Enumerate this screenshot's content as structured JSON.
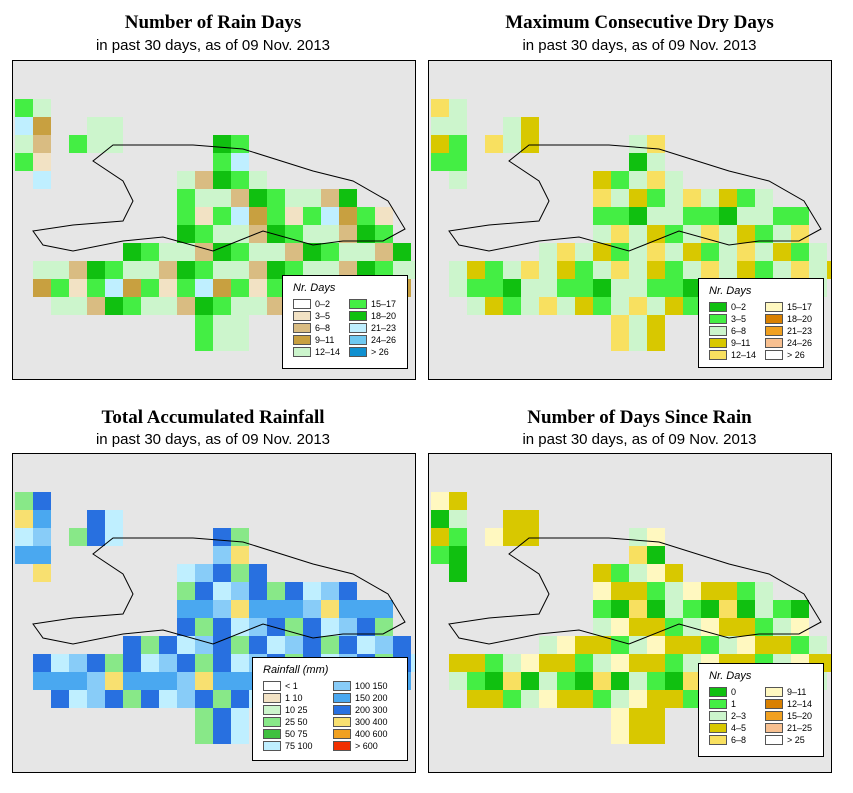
{
  "panels": [
    {
      "id": "rain-days",
      "title": "Number of Rain Days",
      "subtitle": "in past 30 days, as of  09 Nov. 2013",
      "legend": {
        "title": "Nr. Days",
        "items": [
          {
            "label": "0–2",
            "color": "#ffffff"
          },
          {
            "label": "3–5",
            "color": "#f2e2c4"
          },
          {
            "label": "6–8",
            "color": "#d9bc82"
          },
          {
            "label": "9–11",
            "color": "#c8a040"
          },
          {
            "label": "12–14",
            "color": "#ccf5cc"
          },
          {
            "label": "15–17",
            "color": "#44ee44"
          },
          {
            "label": "18–20",
            "color": "#10c010"
          },
          {
            "label": "21–23",
            "color": "#bfefff"
          },
          {
            "label": "24–26",
            "color": "#6ec8f0"
          },
          {
            "label": "> 26",
            "color": "#1090d0"
          }
        ]
      }
    },
    {
      "id": "dry-days",
      "title": "Maximum Consecutive Dry Days",
      "subtitle": "in past 30 days, as of  09 Nov. 2013",
      "legend": {
        "title": "Nr. Days",
        "items": [
          {
            "label": "0–2",
            "color": "#10c010"
          },
          {
            "label": "3–5",
            "color": "#44ee44"
          },
          {
            "label": "6–8",
            "color": "#ccf5cc"
          },
          {
            "label": "9–11",
            "color": "#d8c800"
          },
          {
            "label": "12–14",
            "color": "#f8e060"
          },
          {
            "label": "15–17",
            "color": "#fff8c0"
          },
          {
            "label": "18–20",
            "color": "#d98000"
          },
          {
            "label": "21–23",
            "color": "#f0a020"
          },
          {
            "label": "24–26",
            "color": "#f8c090"
          },
          {
            "label": "> 26",
            "color": "#ffffff"
          }
        ]
      }
    },
    {
      "id": "rainfall",
      "title": "Total Accumulated Rainfall",
      "subtitle": "in past 30 days, as of  09 Nov. 2013",
      "legend": {
        "title": "Rainfall (mm)",
        "items": [
          {
            "label": "< 1",
            "color": "#ffffff"
          },
          {
            "label": "1   10",
            "color": "#f2e2c4"
          },
          {
            "label": "10   25",
            "color": "#ccf5cc"
          },
          {
            "label": "25   50",
            "color": "#88e888"
          },
          {
            "label": "50   75",
            "color": "#40c040"
          },
          {
            "label": "75   100",
            "color": "#bfefff"
          },
          {
            "label": "100   150",
            "color": "#88ccf8"
          },
          {
            "label": "150   200",
            "color": "#4aa8f0"
          },
          {
            "label": "200   300",
            "color": "#2870e0"
          },
          {
            "label": "300   400",
            "color": "#f8e070"
          },
          {
            "label": "400   600",
            "color": "#f0a020"
          },
          {
            "label": "> 600",
            "color": "#f03000"
          }
        ]
      }
    },
    {
      "id": "since-rain",
      "title": "Number of Days Since Rain",
      "subtitle": "in past 30 days, as of  09 Nov. 2013",
      "legend": {
        "title": "Nr. Days",
        "items": [
          {
            "label": "0",
            "color": "#10c010"
          },
          {
            "label": "1",
            "color": "#44ee44"
          },
          {
            "label": "2–3",
            "color": "#ccf5cc"
          },
          {
            "label": "4–5",
            "color": "#d8c800"
          },
          {
            "label": "6–8",
            "color": "#f8e060"
          },
          {
            "label": "9–11",
            "color": "#fff8c0"
          },
          {
            "label": "12–14",
            "color": "#d98000"
          },
          {
            "label": "15–20",
            "color": "#f0a020"
          },
          {
            "label": "21–25",
            "color": "#f8c090"
          },
          {
            "label": "> 25",
            "color": "#ffffff"
          }
        ]
      }
    }
  ]
}
